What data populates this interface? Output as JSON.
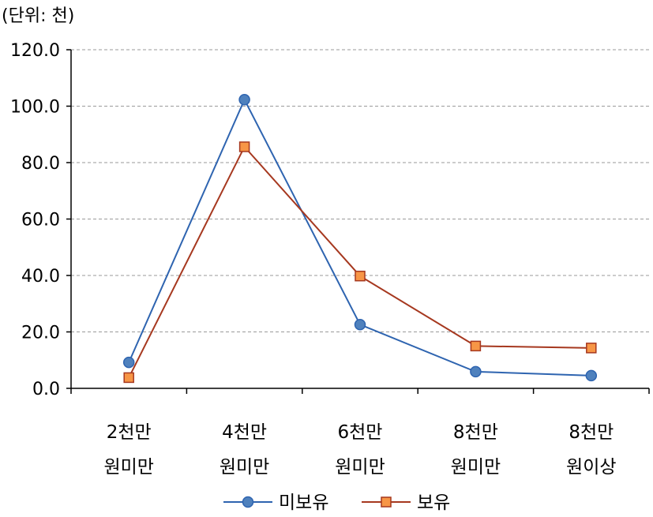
{
  "unit_label": "(단위: 천)",
  "chart_data": {
    "type": "line",
    "categories": [
      [
        "2천만",
        "원미만"
      ],
      [
        "4천만",
        "원미만"
      ],
      [
        "6천만",
        "원미만"
      ],
      [
        "8천만",
        "원미만"
      ],
      [
        "8천만",
        "원이상"
      ]
    ],
    "series": [
      {
        "name": "미보유",
        "values": [
          9.2,
          102.3,
          22.6,
          5.9,
          4.5
        ],
        "color": "#2E64B0",
        "fill": "#4F81BD",
        "marker": "circle"
      },
      {
        "name": "보유",
        "values": [
          3.8,
          85.6,
          39.8,
          15.0,
          14.3
        ],
        "color": "#A6381F",
        "fill": "#F79646",
        "marker": "square"
      }
    ],
    "ylim": [
      0,
      120
    ],
    "yticks": [
      "0.0",
      "20.0",
      "40.0",
      "60.0",
      "80.0",
      "100.0",
      "120.0"
    ],
    "grid": true,
    "legend": "bottom"
  }
}
